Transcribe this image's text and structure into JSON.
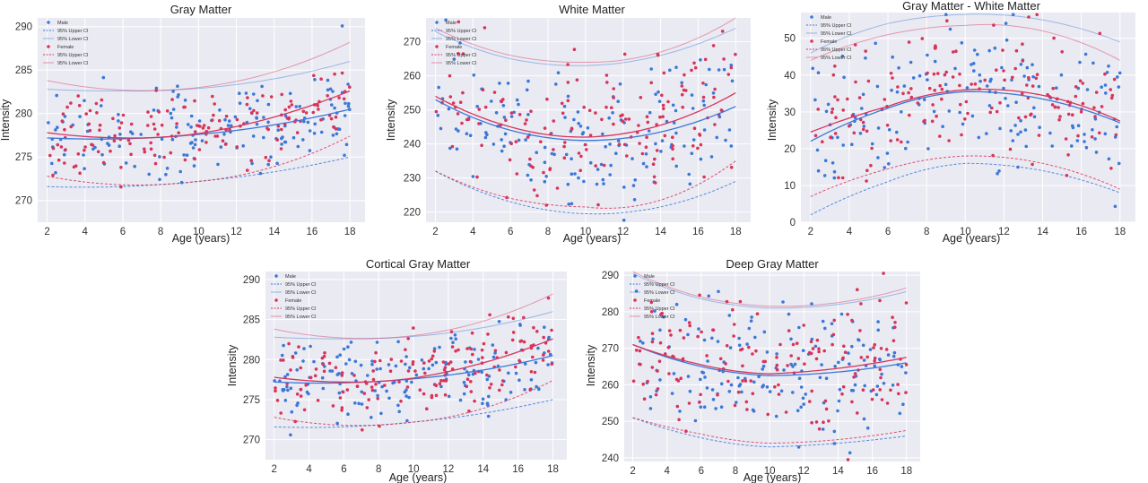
{
  "chart_data": [
    {
      "type": "scatter",
      "title": "Gray Matter",
      "xlabel": "Age (years)",
      "ylabel": "Intensity",
      "xlim": [
        1.5,
        18.8
      ],
      "ylim": [
        267.5,
        291
      ],
      "xticks": [
        2,
        4,
        6,
        8,
        10,
        12,
        14,
        16,
        18
      ],
      "yticks": [
        270,
        275,
        280,
        285,
        290
      ],
      "legend_position": "top-left",
      "legend": [
        "Male",
        "95% Upper CI",
        "95% Lower CI",
        "Female",
        "95% Upper CI",
        "95% Lower CI"
      ],
      "series": [
        {
          "name": "Male",
          "color": "#3a78d8",
          "fit": {
            "x": [
              2,
              6,
              10,
              14,
              18
            ],
            "y": [
              277.2,
              277.1,
              277.6,
              278.7,
              280.5
            ]
          },
          "upper_ci": {
            "x": [
              2,
              6,
              10,
              14,
              18
            ],
            "y": [
              282.8,
              282.6,
              282.9,
              284.0,
              286.0
            ]
          },
          "lower_ci": {
            "x": [
              2,
              6,
              10,
              14,
              18
            ],
            "y": [
              271.6,
              271.6,
              272.2,
              273.3,
              275.0
            ]
          }
        },
        {
          "name": "Female",
          "color": "#d8345a",
          "fit": {
            "x": [
              2,
              6,
              10,
              14,
              18
            ],
            "y": [
              277.8,
              277.2,
              277.7,
              279.6,
              282.6
            ]
          },
          "upper_ci": {
            "x": [
              2,
              6,
              10,
              14,
              18
            ],
            "y": [
              283.8,
              282.7,
              283.0,
              284.8,
              288.2
            ]
          },
          "lower_ci": {
            "x": [
              2,
              6,
              10,
              14,
              18
            ],
            "y": [
              272.8,
              271.8,
              272.2,
              273.9,
              277.4
            ]
          }
        }
      ]
    },
    {
      "type": "scatter",
      "title": "White Matter",
      "xlabel": "Age (years)",
      "ylabel": "Intensity",
      "xlim": [
        1.5,
        18.8
      ],
      "ylim": [
        217,
        277
      ],
      "xticks": [
        2,
        4,
        6,
        8,
        10,
        12,
        14,
        16,
        18
      ],
      "yticks": [
        220,
        230,
        240,
        250,
        260,
        270
      ],
      "legend_position": "top-left",
      "legend": [
        "Male",
        "95% Upper CI",
        "95% Lower CI",
        "Female",
        "95% Upper CI",
        "95% Lower CI"
      ],
      "series": [
        {
          "name": "Male",
          "color": "#3a78d8",
          "fit": {
            "x": [
              2,
              6,
              10,
              14,
              18
            ],
            "y": [
              253.0,
              244.0,
              241.0,
              243.5,
              251.0
            ]
          },
          "upper_ci": {
            "x": [
              2,
              6,
              10,
              14,
              18
            ],
            "y": [
              273.0,
              265.0,
              263.0,
              266.0,
              274.0
            ]
          },
          "lower_ci": {
            "x": [
              2,
              6,
              10,
              14,
              18
            ],
            "y": [
              232.0,
              223.0,
              219.5,
              221.5,
              229.0
            ]
          }
        },
        {
          "name": "Female",
          "color": "#d8345a",
          "fit": {
            "x": [
              2,
              6,
              10,
              14,
              18
            ],
            "y": [
              254.0,
              245.0,
              242.0,
              245.5,
              255.0
            ]
          },
          "upper_ci": {
            "x": [
              2,
              6,
              10,
              14,
              18
            ],
            "y": [
              274.0,
              266.0,
              264.0,
              267.0,
              277.0
            ]
          },
          "lower_ci": {
            "x": [
              2,
              6,
              10,
              14,
              18
            ],
            "y": [
              232.0,
              224.0,
              221.5,
              223.5,
              235.0
            ]
          }
        }
      ]
    },
    {
      "type": "scatter",
      "title": "Gray Matter - White Matter",
      "xlabel": "Age (years)",
      "ylabel": "Intensity",
      "xlim": [
        1.5,
        18.8
      ],
      "ylim": [
        0,
        57
      ],
      "xticks": [
        2,
        4,
        6,
        8,
        10,
        12,
        14,
        16,
        18
      ],
      "yticks": [
        0,
        10,
        20,
        30,
        40,
        50
      ],
      "legend_position": "top-left",
      "legend": [
        "Male",
        "95% Upper CI",
        "95% Lower CI",
        "Female",
        "95% Upper CI",
        "95% Lower CI"
      ],
      "series": [
        {
          "name": "Male",
          "color": "#3a78d8",
          "fit": {
            "x": [
              2,
              6,
              10,
              14,
              18
            ],
            "y": [
              22.0,
              31.0,
              35.5,
              33.5,
              27.0
            ]
          },
          "upper_ci": {
            "x": [
              2,
              6,
              10,
              14,
              18
            ],
            "y": [
              46.0,
              54.0,
              56.5,
              55.0,
              49.0
            ]
          },
          "lower_ci": {
            "x": [
              2,
              6,
              10,
              14,
              18
            ],
            "y": [
              2.0,
              11.0,
              16.0,
              14.0,
              8.0
            ]
          }
        },
        {
          "name": "Female",
          "color": "#d8345a",
          "fit": {
            "x": [
              2,
              6,
              10,
              14,
              18
            ],
            "y": [
              24.5,
              31.5,
              36.0,
              34.5,
              27.5
            ]
          },
          "upper_ci": {
            "x": [
              2,
              6,
              10,
              14,
              18
            ],
            "y": [
              44.0,
              51.0,
              53.5,
              52.0,
              44.0
            ]
          },
          "lower_ci": {
            "x": [
              2,
              6,
              10,
              14,
              18
            ],
            "y": [
              7.0,
              14.5,
              18.0,
              16.0,
              9.0
            ]
          }
        }
      ]
    },
    {
      "type": "scatter",
      "title": "Cortical Gray Matter",
      "xlabel": "Age (years)",
      "ylabel": "Intensity",
      "xlim": [
        1.5,
        18.8
      ],
      "ylim": [
        267.5,
        291
      ],
      "xticks": [
        2,
        4,
        6,
        8,
        10,
        12,
        14,
        16,
        18
      ],
      "yticks": [
        270,
        275,
        280,
        285,
        290
      ],
      "legend_position": "top-left",
      "legend": [
        "Male",
        "95% Upper CI",
        "95% Lower CI",
        "Female",
        "95% Upper CI",
        "95% Lower CI"
      ],
      "series": [
        {
          "name": "Male",
          "color": "#3a78d8",
          "fit": {
            "x": [
              2,
              6,
              10,
              14,
              18
            ],
            "y": [
              277.2,
              277.1,
              277.6,
              278.7,
              280.5
            ]
          },
          "upper_ci": {
            "x": [
              2,
              6,
              10,
              14,
              18
            ],
            "y": [
              282.8,
              282.6,
              282.9,
              284.0,
              286.0
            ]
          },
          "lower_ci": {
            "x": [
              2,
              6,
              10,
              14,
              18
            ],
            "y": [
              271.6,
              271.6,
              272.2,
              273.3,
              275.0
            ]
          }
        },
        {
          "name": "Female",
          "color": "#d8345a",
          "fit": {
            "x": [
              2,
              6,
              10,
              14,
              18
            ],
            "y": [
              277.8,
              277.2,
              277.7,
              279.6,
              282.6
            ]
          },
          "upper_ci": {
            "x": [
              2,
              6,
              10,
              14,
              18
            ],
            "y": [
              283.8,
              282.7,
              283.0,
              284.8,
              288.2
            ]
          },
          "lower_ci": {
            "x": [
              2,
              6,
              10,
              14,
              18
            ],
            "y": [
              272.8,
              271.8,
              272.2,
              273.9,
              277.4
            ]
          }
        }
      ]
    },
    {
      "type": "scatter",
      "title": "Deep Gray Matter",
      "xlabel": "Age (years)",
      "ylabel": "Intensity",
      "xlim": [
        1.5,
        18.8
      ],
      "ylim": [
        239,
        291
      ],
      "xticks": [
        2,
        4,
        6,
        8,
        10,
        12,
        14,
        16,
        18
      ],
      "yticks": [
        240,
        250,
        260,
        270,
        280,
        290
      ],
      "legend_position": "top-left",
      "legend": [
        "Male",
        "95% Upper CI",
        "95% Lower CI",
        "Female",
        "95% Upper CI",
        "95% Lower CI"
      ],
      "series": [
        {
          "name": "Male",
          "color": "#3a78d8",
          "fit": {
            "x": [
              2,
              6,
              10,
              14,
              18
            ],
            "y": [
              271.0,
              265.0,
              262.5,
              263.5,
              266.0
            ]
          },
          "upper_ci": {
            "x": [
              2,
              6,
              10,
              14,
              18
            ],
            "y": [
              290.5,
              283.5,
              281.0,
              282.0,
              285.5
            ]
          },
          "lower_ci": {
            "x": [
              2,
              6,
              10,
              14,
              18
            ],
            "y": [
              251.0,
              245.5,
              243.0,
              244.0,
              246.0
            ]
          }
        },
        {
          "name": "Female",
          "color": "#d8345a",
          "fit": {
            "x": [
              2,
              6,
              10,
              14,
              18
            ],
            "y": [
              271.0,
              265.5,
              263.0,
              264.5,
              267.5
            ]
          },
          "upper_ci": {
            "x": [
              2,
              6,
              10,
              14,
              18
            ],
            "y": [
              291.0,
              284.0,
              281.5,
              282.5,
              286.5
            ]
          },
          "lower_ci": {
            "x": [
              2,
              6,
              10,
              14,
              18
            ],
            "y": [
              251.0,
              246.5,
              244.0,
              245.0,
              247.5
            ]
          }
        }
      ]
    }
  ]
}
